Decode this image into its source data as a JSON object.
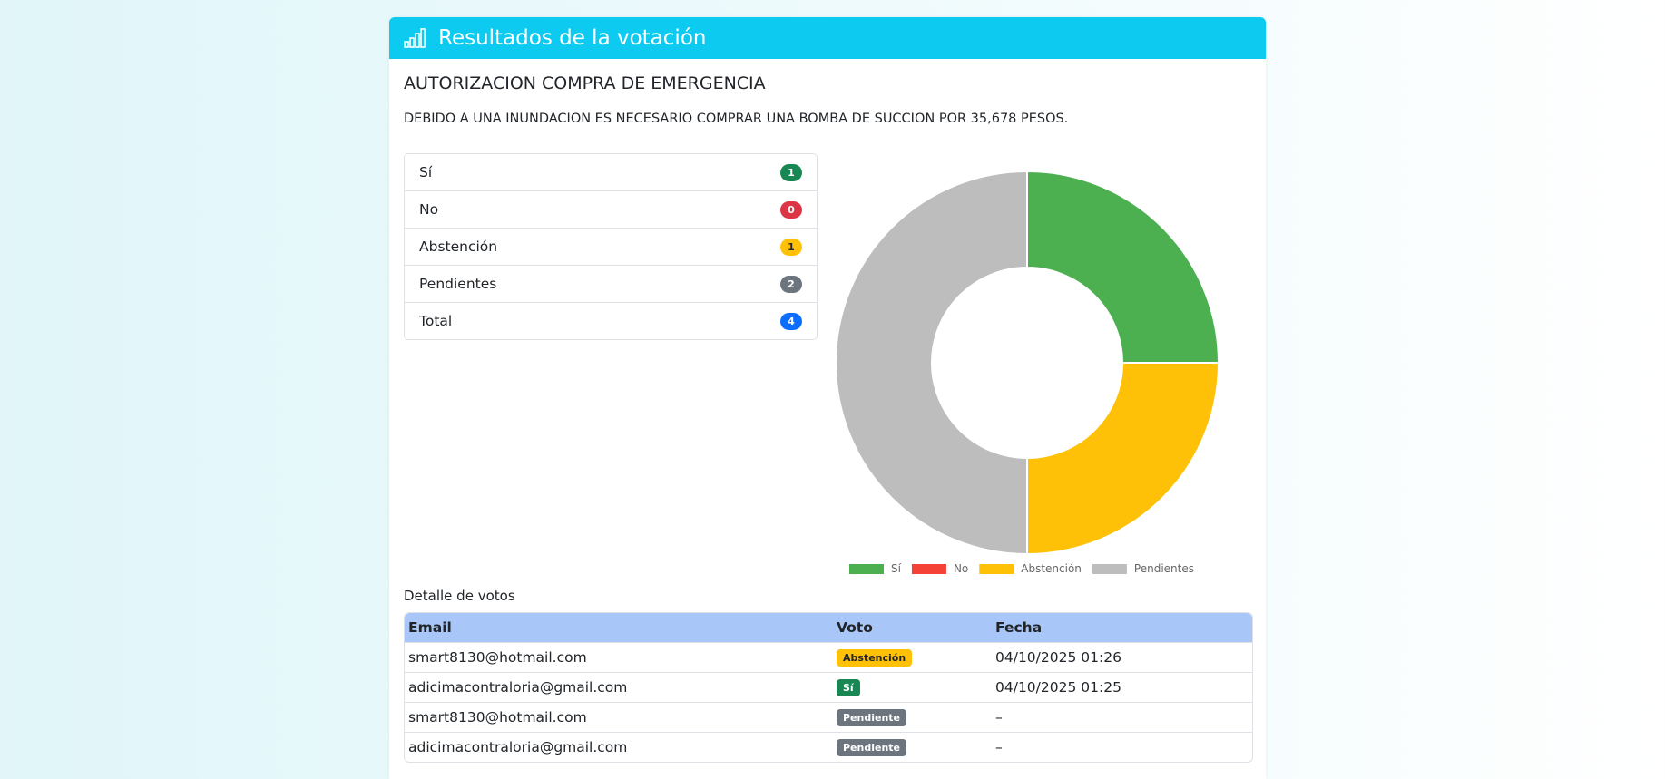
{
  "header": {
    "title": "Resultados de la votación"
  },
  "poll": {
    "title": "AUTORIZACION COMPRA DE EMERGENCIA",
    "description": "DEBIDO A UNA INUNDACION ES NECESARIO COMPRAR UNA BOMBA DE SUCCION POR 35,678 PESOS."
  },
  "summary": {
    "rows": [
      {
        "label": "Sí",
        "count": 1
      },
      {
        "label": "No",
        "count": 0
      },
      {
        "label": "Abstención",
        "count": 1
      },
      {
        "label": "Pendientes",
        "count": 2
      },
      {
        "label": "Total",
        "count": 4
      }
    ]
  },
  "chart_data": {
    "type": "doughnut",
    "categories": [
      "Sí",
      "No",
      "Abstención",
      "Pendientes"
    ],
    "values": [
      1,
      0,
      1,
      2
    ],
    "colors": [
      "#4caf50",
      "#f44336",
      "#ffc107",
      "#bdbdbd"
    ],
    "legend": "bottom"
  },
  "details": {
    "title": "Detalle de votos",
    "table": {
      "columns": [
        "Email",
        "Voto",
        "Fecha"
      ],
      "rows": [
        [
          "smart8130@hotmail.com",
          "Abstención",
          "04/10/2025 01:26"
        ],
        [
          "adicimacontraloria@gmail.com",
          "Sí",
          "04/10/2025 01:25"
        ],
        [
          "smart8130@hotmail.com",
          "Pendiente",
          "–"
        ],
        [
          "adicimacontraloria@gmail.com",
          "Pendiente",
          "–"
        ]
      ]
    }
  }
}
